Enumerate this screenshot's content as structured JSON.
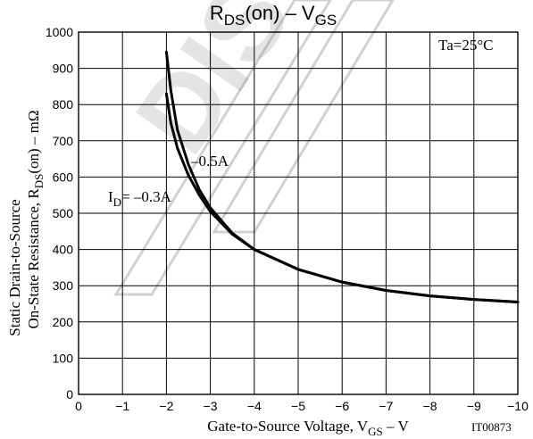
{
  "title": {
    "main": "R",
    "main_sub": "DS",
    "main_after": "(on)  –  V",
    "main_sub2": "GS"
  },
  "watermark_text": "DIS",
  "annotations": {
    "temperature": "Ta=25°C",
    "series1_label": "–0.5A",
    "series2_prefix": "I",
    "series2_sub": "D",
    "series2_after": "= –0.3A"
  },
  "ylabel": {
    "line1": "Static Drain-to-Source",
    "line2_pre": "On-State Resistance, R",
    "line2_sub": "DS",
    "line2_post": "(on)  –  mΩ"
  },
  "xlabel": {
    "pre": "Gate-to-Source Voltage, V",
    "sub": "GS",
    "post": "  –  V"
  },
  "figure_code": "IT00873",
  "chart_data": {
    "type": "line",
    "xlim": [
      0,
      -10
    ],
    "ylim": [
      0,
      1000
    ],
    "x_ticks": [
      0,
      -1,
      -2,
      -3,
      -4,
      -5,
      -6,
      -7,
      -8,
      -9,
      -10
    ],
    "x_tick_labels": [
      "0",
      "−1",
      "−2",
      "−3",
      "−4",
      "−5",
      "−6",
      "−7",
      "−8",
      "−9",
      "−10"
    ],
    "y_ticks": [
      0,
      100,
      200,
      300,
      400,
      500,
      600,
      700,
      800,
      900,
      1000
    ],
    "y_tick_labels": [
      "0",
      "100",
      "200",
      "300",
      "400",
      "500",
      "600",
      "700",
      "800",
      "900",
      "1000"
    ],
    "grid": true,
    "series": [
      {
        "name": "–0.5A",
        "x": [
          -2.0,
          -2.1,
          -2.25,
          -2.5,
          -2.75,
          -3.0,
          -3.5,
          -4.0,
          -5.0,
          -6.0,
          -7.0,
          -8.0,
          -9.0,
          -10.0
        ],
        "y": [
          945,
          840,
          730,
          635,
          565,
          515,
          445,
          400,
          345,
          310,
          287,
          272,
          262,
          255
        ]
      },
      {
        "name": "I D= –0.3A",
        "x": [
          -2.0,
          -2.1,
          -2.25,
          -2.5,
          -2.75,
          -3.0,
          -3.5,
          -4.0,
          -5.0,
          -6.0,
          -7.0,
          -8.0,
          -9.0,
          -10.0
        ],
        "y": [
          830,
          750,
          680,
          605,
          550,
          505,
          442,
          400,
          345,
          310,
          287,
          272,
          262,
          255
        ]
      }
    ]
  }
}
